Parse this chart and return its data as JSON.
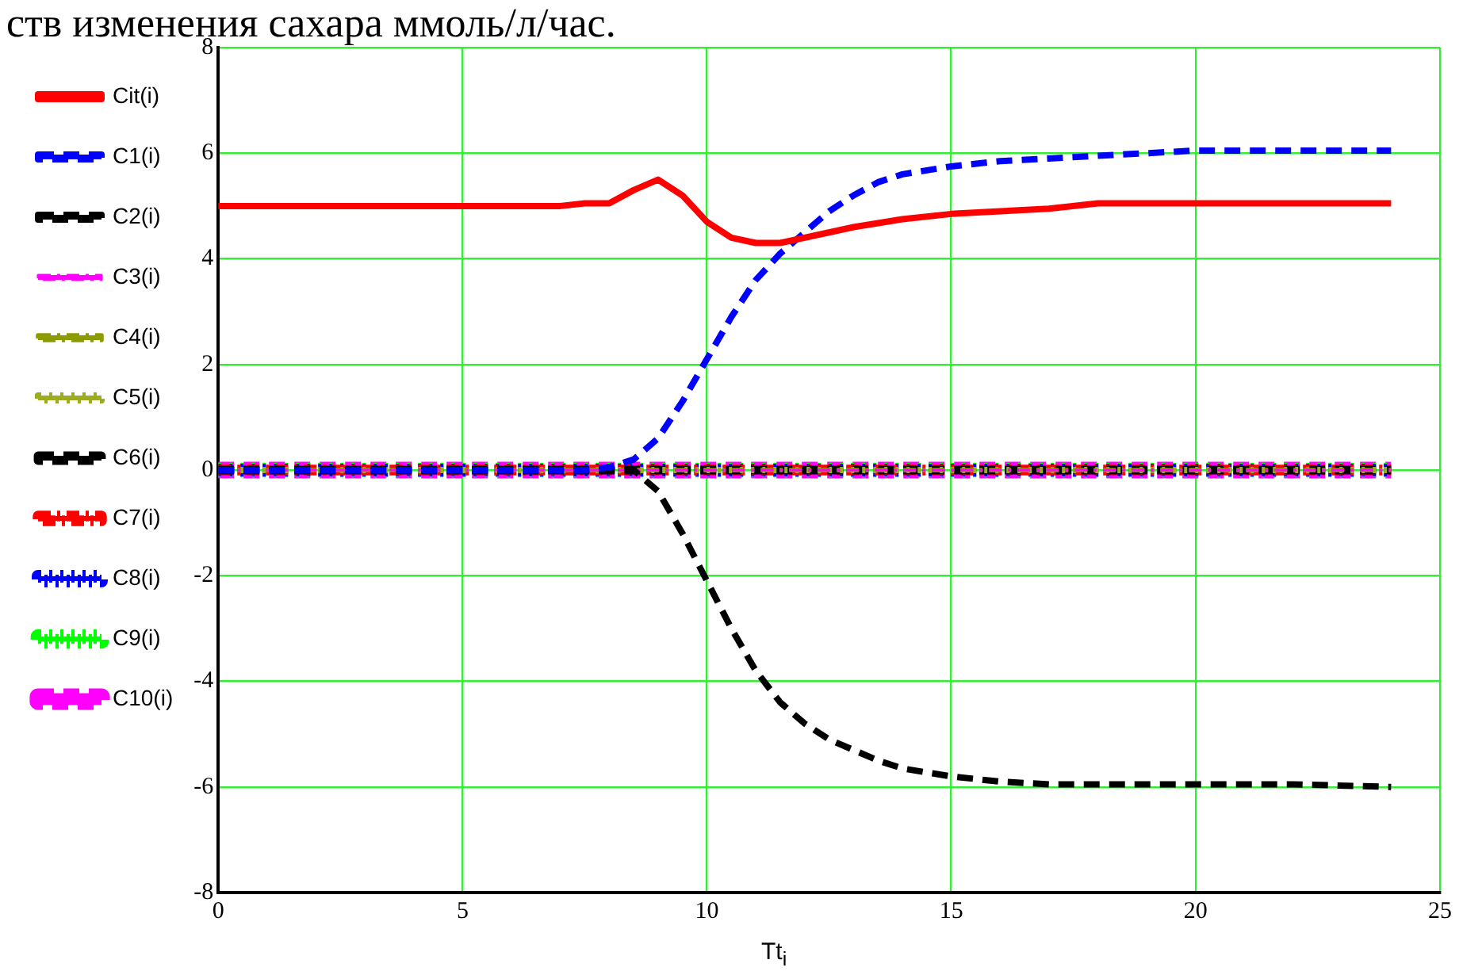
{
  "chart_data": {
    "type": "line",
    "title": "ств изменения сахара ммоль/л/час.",
    "xlabel": "Tt$_{i}$",
    "xlim": [
      0,
      25
    ],
    "xticks": [
      0,
      5,
      10,
      15,
      20,
      25
    ],
    "ylim": [
      -8,
      8
    ],
    "yticks": [
      -8,
      -6,
      -4,
      -2,
      0,
      2,
      4,
      6,
      8
    ],
    "grid": true,
    "legend": "left",
    "marker": "none",
    "series": [
      {
        "name": "Cit(i)",
        "color": "#ff0000",
        "line_style": "solid",
        "x": [
          0,
          7,
          7.5,
          8,
          8.5,
          9,
          9.5,
          10,
          10.5,
          11,
          11.5,
          12,
          13,
          14,
          15,
          16,
          17,
          18,
          20,
          22,
          24
        ],
        "values": [
          5,
          5,
          5.05,
          5.05,
          5.3,
          5.5,
          5.2,
          4.7,
          4.4,
          4.3,
          4.3,
          4.4,
          4.6,
          4.75,
          4.85,
          4.9,
          4.95,
          5.05,
          5.05,
          5.05,
          5.05
        ]
      },
      {
        "name": "C1(i)",
        "color": "#0000ff",
        "line_style": "dashed",
        "x": [
          0,
          7.5,
          8,
          8.5,
          9,
          9.5,
          10,
          10.5,
          11,
          11.5,
          12,
          12.5,
          13,
          13.5,
          14,
          15,
          16,
          17,
          18,
          20,
          22,
          24
        ],
        "values": [
          0,
          0,
          0.05,
          0.2,
          0.6,
          1.3,
          2.1,
          2.9,
          3.6,
          4.1,
          4.5,
          4.9,
          5.2,
          5.45,
          5.6,
          5.75,
          5.85,
          5.9,
          5.95,
          6.05,
          6.05,
          6.05
        ]
      },
      {
        "name": "C2(i)",
        "color": "#000000",
        "line_style": "dashed",
        "x": [
          0,
          8.5,
          9,
          9.5,
          10,
          10.5,
          11,
          11.5,
          12,
          12.5,
          13,
          13.5,
          14,
          15,
          16,
          17,
          18,
          20,
          22,
          24
        ],
        "values": [
          0,
          0,
          -0.4,
          -1.2,
          -2.1,
          -3,
          -3.8,
          -4.4,
          -4.8,
          -5.1,
          -5.3,
          -5.5,
          -5.65,
          -5.8,
          -5.9,
          -5.95,
          -5.95,
          -5.95,
          -5.95,
          -6
        ]
      },
      {
        "name": "C3(i)",
        "color": "#ff00ff",
        "line_style": "dashdot",
        "x": [
          0,
          24
        ],
        "values": [
          0,
          0
        ]
      },
      {
        "name": "C4(i)",
        "color": "#8c9c00",
        "line_style": "dashdot",
        "x": [
          0,
          24
        ],
        "values": [
          0,
          0
        ]
      },
      {
        "name": "C5(i)",
        "color": "#9cac20",
        "line_style": "dotted",
        "x": [
          0,
          24
        ],
        "values": [
          0,
          0
        ]
      },
      {
        "name": "C6(i)",
        "color": "#000000",
        "line_style": "dashed",
        "x": [
          0,
          24
        ],
        "values": [
          0,
          0
        ]
      },
      {
        "name": "C7(i)",
        "color": "#ff0000",
        "line_style": "dashdot",
        "x": [
          0,
          24
        ],
        "values": [
          0,
          0
        ]
      },
      {
        "name": "C8(i)",
        "color": "#0000ff",
        "line_style": "dotted",
        "x": [
          0,
          24
        ],
        "values": [
          0,
          0
        ]
      },
      {
        "name": "C9(i)",
        "color": "#00ff00",
        "line_style": "dotted",
        "x": [
          0,
          24
        ],
        "values": [
          0,
          0
        ]
      },
      {
        "name": "C10(i)",
        "color": "#ff00ff",
        "line_style": "dashed",
        "x": [
          0,
          24
        ],
        "values": [
          0,
          0
        ]
      }
    ]
  }
}
